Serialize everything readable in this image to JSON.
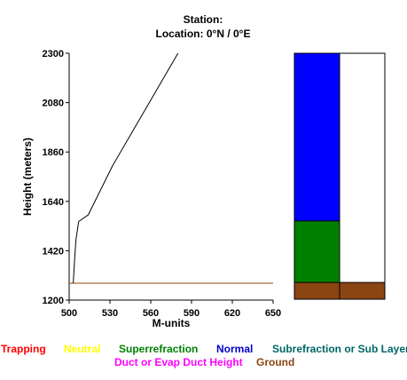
{
  "header": {
    "station_line": "Station:",
    "location_line": "Location:   0°N /   0°E"
  },
  "chart_data": {
    "type": "line",
    "title": "",
    "xlabel": "M-units",
    "ylabel": "Height (meters)",
    "xlim": [
      500,
      650
    ],
    "ylim": [
      1200,
      2300
    ],
    "x_ticks": [
      "500",
      "530",
      "560",
      "590",
      "620",
      "650"
    ],
    "y_ticks": [
      "1200",
      "1420",
      "1640",
      "1860",
      "2080",
      "2300"
    ],
    "series": [
      {
        "color": "#000000",
        "points": [
          [
            503,
            1275
          ],
          [
            504,
            1380
          ],
          [
            505,
            1470
          ],
          [
            507,
            1550
          ],
          [
            514,
            1580
          ],
          [
            532,
            1800
          ],
          [
            556,
            2050
          ],
          [
            580,
            2300
          ]
        ]
      }
    ],
    "ground_line": {
      "y": 1275,
      "color": "#8B4513"
    },
    "grid": false,
    "profile_bar": {
      "ylim": [
        1200,
        2300
      ],
      "left_column": [
        {
          "layer": "Ground",
          "from": 1200,
          "to": 1275,
          "color": "#8B4513"
        },
        {
          "layer": "Superrefraction",
          "from": 1275,
          "to": 1550,
          "color": "#008000"
        },
        {
          "layer": "Normal",
          "from": 1550,
          "to": 2300,
          "color": "#0000FF"
        }
      ],
      "right_column": [
        {
          "layer": "Ground",
          "from": 1200,
          "to": 1275,
          "color": "#8B4513"
        }
      ]
    },
    "legend": [
      {
        "label": "Trapping",
        "color": "#FF0000"
      },
      {
        "label": "Neutral",
        "color": "#FFFF00"
      },
      {
        "label": "Superrefraction",
        "color": "#008000"
      },
      {
        "label": "Normal",
        "color": "#0000CC"
      },
      {
        "label": "Subrefraction or Sub Layer",
        "color": "#006666"
      },
      {
        "label": "Duct or Evap Duct Height",
        "color": "#FF00FF"
      },
      {
        "label": "Ground",
        "color": "#8B4513"
      }
    ]
  }
}
